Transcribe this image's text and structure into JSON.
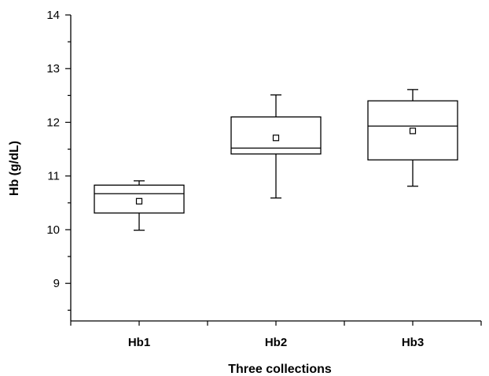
{
  "chart_data": {
    "type": "box",
    "xlabel": "Three collections",
    "ylabel": "Hb (g/dL)",
    "ylim": [
      8.3,
      14
    ],
    "yticks": [
      9,
      10,
      11,
      12,
      13,
      14
    ],
    "categories": [
      "Hb1",
      "Hb2",
      "Hb3"
    ],
    "boxes": [
      {
        "category": "Hb1",
        "whisker_low": 9.99,
        "q1": 10.31,
        "median": 10.67,
        "q3": 10.83,
        "whisker_high": 10.91,
        "mean": 10.53
      },
      {
        "category": "Hb2",
        "whisker_low": 10.59,
        "q1": 11.41,
        "median": 11.52,
        "q3": 12.1,
        "whisker_high": 12.51,
        "mean": 11.71
      },
      {
        "category": "Hb3",
        "whisker_low": 10.81,
        "q1": 11.3,
        "median": 11.93,
        "q3": 12.4,
        "whisker_high": 12.61,
        "mean": 11.84
      }
    ],
    "grid": false,
    "legend": "none"
  }
}
